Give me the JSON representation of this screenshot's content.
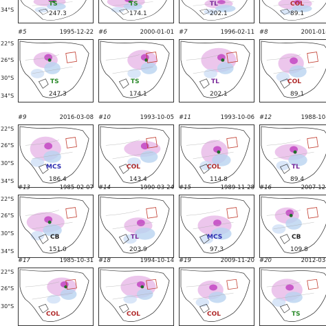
{
  "lat_labels": [
    "22°S",
    "26°S",
    "30°S",
    "34°S"
  ],
  "top_row_partial": [
    {
      "type": "TS",
      "value": "247.3",
      "type_color": "#2a8a2a"
    },
    {
      "type": "TS",
      "value": "174.1",
      "type_color": "#2a8a2a"
    },
    {
      "type": "TL",
      "value": "202.1",
      "type_color": "#7a2a9a"
    },
    {
      "type": "COL",
      "value": "89.1",
      "type_color": "#b02a2a"
    }
  ],
  "panels": [
    {
      "id": "#5",
      "date": "1995-12-22",
      "type": "TS",
      "value": "247.3"
    },
    {
      "id": "#6",
      "date": "2000-01-01",
      "type": "TS",
      "value": "174.1"
    },
    {
      "id": "#7",
      "date": "1996-02-11",
      "type": "TL",
      "value": "202.1"
    },
    {
      "id": "#8",
      "date": "2001-01-01",
      "type": "COL",
      "value": "89.1"
    },
    {
      "id": "#9",
      "date": "2016-03-08",
      "type": "MCS",
      "value": "186.4"
    },
    {
      "id": "#10",
      "date": "1993-10-05",
      "type": "COL",
      "value": "143.4"
    },
    {
      "id": "#11",
      "date": "1993-10-06",
      "type": "COL",
      "value": "114.8"
    },
    {
      "id": "#12",
      "date": "1988-10-18",
      "type": "TL",
      "value": "89.4"
    },
    {
      "id": "#13",
      "date": "1985-02-07",
      "type": "CB",
      "value": "151.0"
    },
    {
      "id": "#14",
      "date": "1990-03-24",
      "type": "TL",
      "value": "203.9"
    },
    {
      "id": "#15",
      "date": "1989-11-28",
      "type": "MCS",
      "value": "97.3"
    },
    {
      "id": "#16",
      "date": "2007-12-17",
      "type": "CB",
      "value": "109.8"
    },
    {
      "id": "#17",
      "date": "1985-10-31",
      "type": "COL",
      "value": ""
    },
    {
      "id": "#18",
      "date": "1994-10-14",
      "type": "COL",
      "value": ""
    },
    {
      "id": "#19",
      "date": "2009-11-20",
      "type": "COL",
      "value": ""
    },
    {
      "id": "#20",
      "date": "2012-03-03",
      "type": "TS",
      "value": ""
    }
  ],
  "type_colors": {
    "TS": "#2a8a2a",
    "TL": "#7a2a9a",
    "COL": "#b02a2a",
    "MCS": "#2a2ab0",
    "CB": "#222222"
  }
}
